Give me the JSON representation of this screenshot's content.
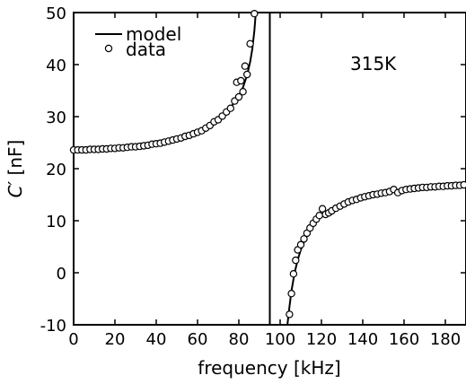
{
  "chart_data": {
    "type": "line",
    "title": "",
    "xlabel": "frequency [kHz]",
    "ylabel_symbol": "C′",
    "ylabel_unit": " [nF]",
    "xlim": [
      0,
      190
    ],
    "ylim": [
      -10,
      50
    ],
    "xticks": [
      0,
      20,
      40,
      60,
      80,
      100,
      120,
      140,
      160,
      180
    ],
    "yticks": [
      -10,
      0,
      10,
      20,
      30,
      40,
      50
    ],
    "grid": false,
    "legend": {
      "placement": "top-left",
      "entries": [
        "model",
        "data"
      ]
    },
    "annotation": "315K",
    "colors": {
      "line": "#000000",
      "marker_stroke": "#000000",
      "marker_fill": "#ffffff"
    },
    "resonance_frequency": 95,
    "series": [
      {
        "name": "model",
        "style": "line",
        "segments": [
          [
            [
              0,
              23.6
            ],
            [
              10,
              23.7
            ],
            [
              20,
              23.9
            ],
            [
              30,
              24.2
            ],
            [
              40,
              24.8
            ],
            [
              50,
              25.7
            ],
            [
              60,
              27.0
            ],
            [
              65,
              28.0
            ],
            [
              70,
              29.3
            ],
            [
              75,
              31.2
            ],
            [
              78,
              32.8
            ],
            [
              80,
              34.0
            ],
            [
              82,
              35.6
            ],
            [
              84,
              38.0
            ],
            [
              85.5,
              40.5
            ],
            [
              86.5,
              43.0
            ],
            [
              87.5,
              46.5
            ],
            [
              88.2,
              50
            ]
          ],
          [
            [
              95,
              -10
            ],
            [
              95,
              50
            ]
          ],
          [
            [
              103.5,
              -10
            ],
            [
              104.5,
              -6.5
            ],
            [
              105.5,
              -3.5
            ],
            [
              107,
              0
            ],
            [
              108.5,
              2.5
            ],
            [
              110,
              4.4
            ],
            [
              112,
              6.3
            ],
            [
              115,
              8.5
            ],
            [
              118,
              10.1
            ],
            [
              121,
              11.1
            ],
            [
              125,
              12.1
            ],
            [
              130,
              13.1
            ],
            [
              140,
              14.5
            ],
            [
              150,
              15.3
            ],
            [
              160,
              15.9
            ],
            [
              170,
              16.4
            ],
            [
              180,
              16.7
            ],
            [
              190,
              16.9
            ]
          ]
        ]
      },
      {
        "name": "data",
        "style": "marker",
        "points": [
          [
            0,
            23.6
          ],
          [
            2,
            23.6
          ],
          [
            4,
            23.6
          ],
          [
            6,
            23.6
          ],
          [
            8,
            23.7
          ],
          [
            10,
            23.7
          ],
          [
            12,
            23.7
          ],
          [
            14,
            23.8
          ],
          [
            16,
            23.8
          ],
          [
            18,
            23.9
          ],
          [
            20,
            23.9
          ],
          [
            22,
            24.0
          ],
          [
            24,
            24.0
          ],
          [
            26,
            24.1
          ],
          [
            28,
            24.2
          ],
          [
            30,
            24.2
          ],
          [
            32,
            24.3
          ],
          [
            34,
            24.4
          ],
          [
            36,
            24.5
          ],
          [
            38,
            24.7
          ],
          [
            40,
            24.8
          ],
          [
            42,
            24.9
          ],
          [
            44,
            25.1
          ],
          [
            46,
            25.3
          ],
          [
            48,
            25.5
          ],
          [
            50,
            25.7
          ],
          [
            52,
            25.9
          ],
          [
            54,
            26.2
          ],
          [
            56,
            26.4
          ],
          [
            58,
            26.7
          ],
          [
            60,
            27.0
          ],
          [
            62,
            27.3
          ],
          [
            64,
            27.8
          ],
          [
            66,
            28.3
          ],
          [
            68,
            29.0
          ],
          [
            70,
            29.4
          ],
          [
            72,
            30.1
          ],
          [
            74,
            30.9
          ],
          [
            76,
            31.6
          ],
          [
            78,
            33.0
          ],
          [
            79,
            36.6
          ],
          [
            80,
            33.8
          ],
          [
            81,
            36.9
          ],
          [
            82,
            34.8
          ],
          [
            83,
            39.7
          ],
          [
            84,
            38.1
          ],
          [
            85.5,
            44.0
          ],
          [
            87.5,
            49.8
          ],
          [
            104.5,
            -8.0
          ],
          [
            105.5,
            -4.0
          ],
          [
            106.5,
            -0.2
          ],
          [
            107.5,
            2.4
          ],
          [
            108.5,
            4.4
          ],
          [
            110,
            5.4
          ],
          [
            111.5,
            6.5
          ],
          [
            113,
            7.6
          ],
          [
            114.5,
            8.6
          ],
          [
            116,
            9.5
          ],
          [
            117.5,
            10.3
          ],
          [
            119,
            11.0
          ],
          [
            120.5,
            12.3
          ],
          [
            122,
            11.2
          ],
          [
            123.5,
            11.5
          ],
          [
            125,
            11.9
          ],
          [
            127,
            12.4
          ],
          [
            129,
            12.8
          ],
          [
            131,
            13.2
          ],
          [
            133,
            13.6
          ],
          [
            135,
            13.9
          ],
          [
            137,
            14.1
          ],
          [
            139,
            14.4
          ],
          [
            141,
            14.6
          ],
          [
            143,
            14.8
          ],
          [
            145,
            15.0
          ],
          [
            147,
            15.1
          ],
          [
            149,
            15.3
          ],
          [
            151,
            15.4
          ],
          [
            153,
            15.6
          ],
          [
            155,
            16.0
          ],
          [
            157,
            15.4
          ],
          [
            159,
            15.8
          ],
          [
            161,
            16.0
          ],
          [
            163,
            16.1
          ],
          [
            165,
            16.2
          ],
          [
            167,
            16.3
          ],
          [
            169,
            16.4
          ],
          [
            171,
            16.4
          ],
          [
            173,
            16.5
          ],
          [
            175,
            16.5
          ],
          [
            177,
            16.6
          ],
          [
            179,
            16.6
          ],
          [
            181,
            16.7
          ],
          [
            183,
            16.7
          ],
          [
            185,
            16.8
          ],
          [
            187,
            16.8
          ],
          [
            189,
            16.9
          ]
        ]
      }
    ]
  }
}
